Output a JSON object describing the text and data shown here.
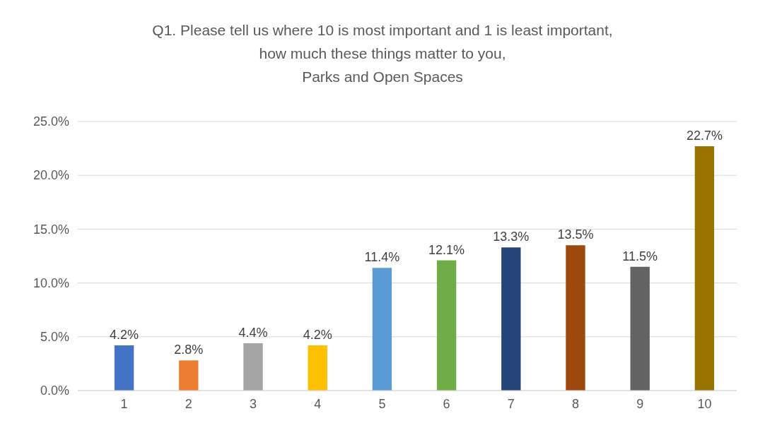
{
  "chart_data": {
    "type": "bar",
    "title": "Q1. Please tell us where 10 is most important and 1 is least important,\nhow much these things matter to you,\nParks and Open Spaces",
    "categories": [
      "1",
      "2",
      "3",
      "4",
      "5",
      "6",
      "7",
      "8",
      "9",
      "10"
    ],
    "values": [
      4.2,
      2.8,
      4.4,
      4.2,
      11.4,
      12.1,
      13.3,
      13.5,
      11.5,
      22.7
    ],
    "colors": [
      "#4472c4",
      "#ed7d31",
      "#a5a5a5",
      "#ffc000",
      "#5b9bd5",
      "#70ad47",
      "#264478",
      "#9e480e",
      "#636363",
      "#997300"
    ],
    "value_labels": [
      "4.2%",
      "2.8%",
      "4.4%",
      "4.2%",
      "11.4%",
      "12.1%",
      "13.3%",
      "13.5%",
      "11.5%",
      "22.7%"
    ],
    "ylim": [
      0,
      25
    ],
    "yticks": [
      {
        "value": 0,
        "label": "0.0%"
      },
      {
        "value": 5,
        "label": "5.0%"
      },
      {
        "value": 10,
        "label": "10.0%"
      },
      {
        "value": 15,
        "label": "15.0%"
      },
      {
        "value": 20,
        "label": "20.0%"
      },
      {
        "value": 25,
        "label": "25.0%"
      }
    ],
    "grid": "y"
  }
}
